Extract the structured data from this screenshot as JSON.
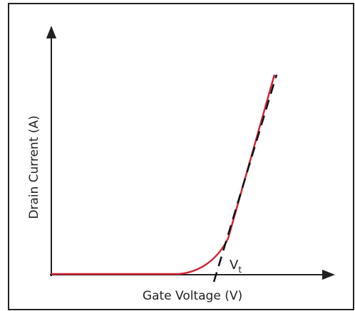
{
  "y_axis": {
    "label": "Drain Current (A)"
  },
  "x_axis": {
    "label": "Gate Voltage (V)"
  },
  "threshold": {
    "symbol": "V",
    "subscript": "t"
  }
}
